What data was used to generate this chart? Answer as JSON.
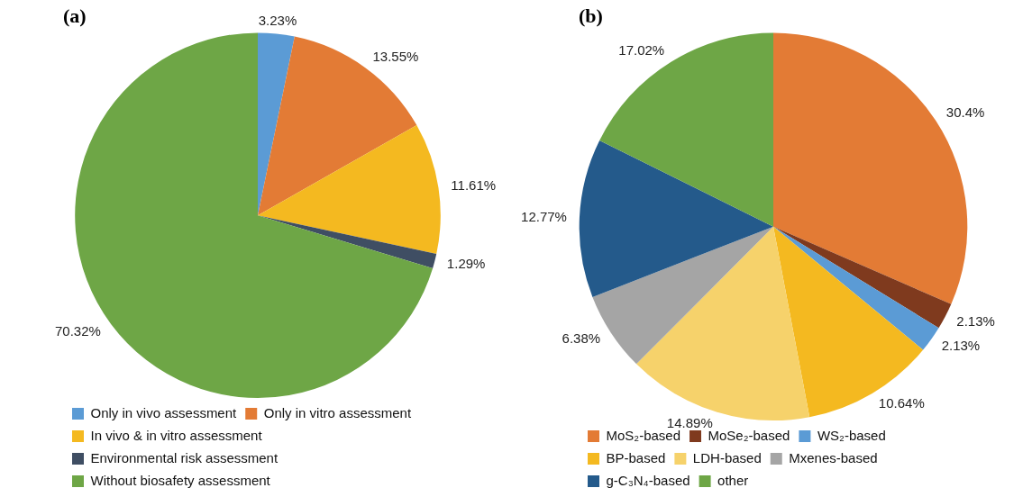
{
  "chart_data": [
    {
      "type": "pie",
      "title": "(a)",
      "categories": [
        "Only in vivo assessment",
        "Only in vitro assessment",
        "In vivo & in vitro assessment",
        "Environmental risk assessment",
        "Without biosafety assessment"
      ],
      "values": [
        3.23,
        13.55,
        11.61,
        1.29,
        70.32
      ],
      "colors": [
        "#5b9bd5",
        "#e37b35",
        "#f4b920",
        "#3f4e63",
        "#6ea646"
      ],
      "value_labels": [
        "3.23%",
        "13.55%",
        "11.61%",
        "1.29%",
        "70.32%"
      ],
      "legend": "bottom"
    },
    {
      "type": "pie",
      "title": "(b)",
      "categories": [
        "MoS₂-based",
        "MoSe₂-based",
        "WS₂-based",
        "BP-based",
        "LDH-based",
        "Mxenes-based",
        "g-C₃N₄-based",
        "other"
      ],
      "values": [
        30.4,
        2.13,
        2.13,
        10.64,
        14.89,
        6.38,
        12.77,
        17.02
      ],
      "colors": [
        "#e37b35",
        "#7f3a1e",
        "#5b9bd5",
        "#f4b920",
        "#f6d26b",
        "#a5a5a5",
        "#245a8b",
        "#6ea646"
      ],
      "value_labels": [
        "30.4%",
        "2.13%",
        "2.13%",
        "10.64%",
        "14.89%",
        "6.38%",
        "12.77%",
        "17.02%"
      ],
      "legend": "bottom"
    }
  ]
}
